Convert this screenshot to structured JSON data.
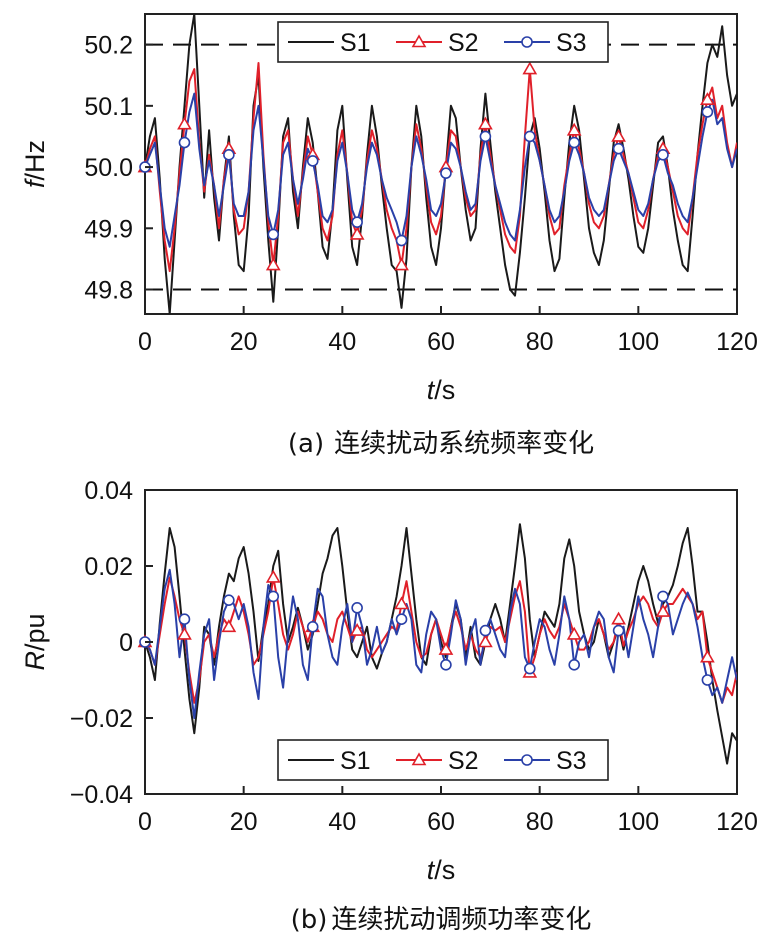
{
  "colors": {
    "S1": "#1a1a1a",
    "S2": "#e0202a",
    "S3": "#2a40a8"
  },
  "chart_data": [
    {
      "id": "a",
      "type": "line",
      "caption_prefix": "(a)",
      "caption_text": "连续扰动系统频率变化",
      "xlabel_italic": "t",
      "xlabel_rest": "/s",
      "ylabel_italic": "f",
      "ylabel_rest": "/Hz",
      "xlim": [
        0,
        120
      ],
      "ylim": [
        49.76,
        50.25
      ],
      "xticks": [
        0,
        20,
        40,
        60,
        80,
        100,
        120
      ],
      "xtick_labels": [
        "0",
        "20",
        "40",
        "60",
        "80",
        "100",
        "120"
      ],
      "yticks": [
        49.8,
        49.9,
        50.0,
        50.1,
        50.2
      ],
      "ytick_labels": [
        "49.8",
        "49.9",
        "50.0",
        "50.1",
        "50.2"
      ],
      "reference_lines": [
        50.2,
        49.8
      ],
      "legend": {
        "position": "top",
        "entries": [
          "S1",
          "S2",
          "S3"
        ]
      },
      "x": [
        0,
        1,
        2,
        3,
        4,
        5,
        6,
        7,
        8,
        9,
        10,
        11,
        12,
        13,
        14,
        15,
        16,
        17,
        18,
        19,
        20,
        21,
        22,
        23,
        24,
        25,
        26,
        27,
        28,
        29,
        30,
        31,
        32,
        33,
        34,
        35,
        36,
        37,
        38,
        39,
        40,
        41,
        42,
        43,
        44,
        45,
        46,
        47,
        48,
        49,
        50,
        51,
        52,
        53,
        54,
        55,
        56,
        57,
        58,
        59,
        60,
        61,
        62,
        63,
        64,
        65,
        66,
        67,
        68,
        69,
        70,
        71,
        72,
        73,
        74,
        75,
        76,
        77,
        78,
        79,
        80,
        81,
        82,
        83,
        84,
        85,
        86,
        87,
        88,
        89,
        90,
        91,
        92,
        93,
        94,
        95,
        96,
        97,
        98,
        99,
        100,
        101,
        102,
        103,
        104,
        105,
        106,
        107,
        108,
        109,
        110,
        111,
        112,
        113,
        114,
        115,
        116,
        117,
        118,
        119,
        120
      ],
      "series": [
        {
          "name": "S1",
          "marker": "none",
          "values": [
            50.0,
            50.05,
            50.08,
            49.98,
            49.85,
            49.76,
            49.88,
            50.0,
            50.1,
            50.2,
            50.25,
            50.1,
            49.95,
            50.06,
            49.95,
            49.88,
            49.98,
            50.05,
            49.92,
            49.84,
            49.83,
            49.92,
            50.1,
            50.15,
            50.0,
            49.88,
            49.78,
            49.9,
            50.05,
            50.08,
            49.96,
            49.9,
            50.0,
            50.08,
            50.04,
            49.96,
            49.87,
            49.85,
            49.93,
            50.06,
            50.1,
            49.98,
            49.87,
            49.84,
            49.92,
            50.02,
            50.1,
            50.05,
            49.97,
            49.9,
            49.84,
            49.83,
            49.77,
            49.85,
            50.0,
            50.1,
            50.05,
            49.95,
            49.87,
            49.84,
            49.9,
            50.0,
            50.1,
            50.08,
            50.0,
            49.93,
            49.88,
            49.9,
            50.03,
            50.12,
            50.04,
            49.96,
            49.9,
            49.84,
            49.8,
            49.79,
            49.86,
            49.95,
            50.05,
            50.08,
            50.03,
            49.96,
            49.88,
            49.83,
            49.85,
            49.95,
            50.04,
            50.1,
            50.06,
            49.98,
            49.9,
            49.86,
            49.84,
            49.88,
            49.96,
            50.04,
            50.07,
            50.03,
            49.98,
            49.92,
            49.87,
            49.86,
            49.9,
            49.97,
            50.04,
            50.05,
            50.0,
            49.93,
            49.88,
            49.84,
            49.83,
            49.92,
            50.02,
            50.1,
            50.17,
            50.2,
            50.18,
            50.23,
            50.15,
            50.1,
            50.12
          ]
        },
        {
          "name": "S2",
          "marker": "triangle",
          "values": [
            50.0,
            50.03,
            50.05,
            49.96,
            49.88,
            49.83,
            49.9,
            49.99,
            50.07,
            50.14,
            50.16,
            50.04,
            49.96,
            50.02,
            49.97,
            49.9,
            49.98,
            50.03,
            49.93,
            49.89,
            49.9,
            49.96,
            50.08,
            50.17,
            50.02,
            49.91,
            49.84,
            49.92,
            50.04,
            50.06,
            49.98,
            49.92,
            49.99,
            50.05,
            50.02,
            49.96,
            49.9,
            49.88,
            49.92,
            50.02,
            50.06,
            49.99,
            49.91,
            49.89,
            49.93,
            50.01,
            50.06,
            50.03,
            49.98,
            49.93,
            49.9,
            49.88,
            49.84,
            49.9,
            50.0,
            50.07,
            50.03,
            49.97,
            49.91,
            49.89,
            49.92,
            50.0,
            50.06,
            50.05,
            50.0,
            49.95,
            49.92,
            49.93,
            50.02,
            50.07,
            50.02,
            49.97,
            49.93,
            49.89,
            49.87,
            49.86,
            49.92,
            50.05,
            50.16,
            50.06,
            50.01,
            49.97,
            49.92,
            49.89,
            49.9,
            49.97,
            50.02,
            50.06,
            50.03,
            49.99,
            49.94,
            49.91,
            49.9,
            49.92,
            49.97,
            50.02,
            50.05,
            50.02,
            49.99,
            49.95,
            49.91,
            49.9,
            49.93,
            49.98,
            50.02,
            50.03,
            50.0,
            49.96,
            49.92,
            49.9,
            49.89,
            49.95,
            50.02,
            50.07,
            50.11,
            50.13,
            50.08,
            50.1,
            50.04,
            50.0,
            50.04
          ]
        },
        {
          "name": "S3",
          "marker": "circle",
          "values": [
            50.0,
            50.02,
            50.04,
            49.97,
            49.9,
            49.87,
            49.92,
            49.97,
            50.04,
            50.09,
            50.12,
            50.03,
            49.97,
            50.01,
            49.97,
            49.92,
            49.97,
            50.02,
            49.94,
            49.92,
            49.92,
            49.96,
            50.06,
            50.1,
            50.01,
            49.92,
            49.89,
            49.93,
            50.02,
            50.04,
            49.98,
            49.94,
            49.98,
            50.03,
            50.01,
            49.97,
            49.92,
            49.91,
            49.93,
            50.01,
            50.04,
            49.99,
            49.93,
            49.91,
            49.94,
            50.0,
            50.04,
            50.02,
            49.98,
            49.95,
            49.93,
            49.91,
            49.88,
            49.92,
            50.0,
            50.05,
            50.02,
            49.98,
            49.93,
            49.92,
            49.94,
            49.99,
            50.04,
            50.03,
            50.0,
            49.96,
            49.93,
            49.94,
            50.01,
            50.05,
            50.01,
            49.97,
            49.94,
            49.91,
            49.89,
            49.88,
            49.93,
            50.0,
            50.05,
            50.04,
            50.01,
            49.97,
            49.93,
            49.91,
            49.92,
            49.96,
            50.01,
            50.04,
            50.02,
            49.99,
            49.95,
            49.93,
            49.92,
            49.93,
            49.97,
            50.01,
            50.03,
            50.01,
            49.99,
            49.96,
            49.93,
            49.92,
            49.94,
            49.98,
            50.01,
            50.02,
            49.99,
            49.97,
            49.94,
            49.92,
            49.91,
            49.95,
            50.0,
            50.05,
            50.09,
            50.11,
            50.07,
            50.08,
            50.03,
            50.0,
            50.03
          ]
        }
      ],
      "marker_x": [
        0,
        8,
        17,
        26,
        34,
        43,
        52,
        61,
        69,
        78,
        87,
        96,
        105,
        114
      ]
    },
    {
      "id": "b",
      "type": "line",
      "caption_prefix": "(b)",
      "caption_text": "连续扰动调频功率变化",
      "xlabel_italic": "t",
      "xlabel_rest": "/s",
      "ylabel_italic": "R",
      "ylabel_rest": "/pu",
      "xlim": [
        0,
        120
      ],
      "ylim": [
        -0.04,
        0.04
      ],
      "xticks": [
        0,
        20,
        40,
        60,
        80,
        100,
        120
      ],
      "xtick_labels": [
        "0",
        "20",
        "40",
        "60",
        "80",
        "100",
        "120"
      ],
      "yticks": [
        -0.04,
        -0.02,
        0,
        0.02,
        0.04
      ],
      "ytick_labels": [
        "−0.04",
        "−0.02",
        "0",
        "0.02",
        "0.04"
      ],
      "reference_lines": [],
      "legend": {
        "position": "bottom",
        "entries": [
          "S1",
          "S2",
          "S3"
        ]
      },
      "x": [
        0,
        1,
        2,
        3,
        4,
        5,
        6,
        7,
        8,
        9,
        10,
        11,
        12,
        13,
        14,
        15,
        16,
        17,
        18,
        19,
        20,
        21,
        22,
        23,
        24,
        25,
        26,
        27,
        28,
        29,
        30,
        31,
        32,
        33,
        34,
        35,
        36,
        37,
        38,
        39,
        40,
        41,
        42,
        43,
        44,
        45,
        46,
        47,
        48,
        49,
        50,
        51,
        52,
        53,
        54,
        55,
        56,
        57,
        58,
        59,
        60,
        61,
        62,
        63,
        64,
        65,
        66,
        67,
        68,
        69,
        70,
        71,
        72,
        73,
        74,
        75,
        76,
        77,
        78,
        79,
        80,
        81,
        82,
        83,
        84,
        85,
        86,
        87,
        88,
        89,
        90,
        91,
        92,
        93,
        94,
        95,
        96,
        97,
        98,
        99,
        100,
        101,
        102,
        103,
        104,
        105,
        106,
        107,
        108,
        109,
        110,
        111,
        112,
        113,
        114,
        115,
        116,
        117,
        118,
        119,
        120
      ],
      "series": [
        {
          "name": "S1",
          "marker": "none",
          "values": [
            0.0,
            -0.004,
            -0.01,
            0.005,
            0.018,
            0.03,
            0.025,
            0.012,
            -0.002,
            -0.015,
            -0.024,
            -0.012,
            0.004,
            0.002,
            -0.006,
            0.004,
            0.012,
            0.018,
            0.016,
            0.022,
            0.025,
            0.018,
            0.008,
            -0.005,
            0.004,
            0.01,
            0.02,
            0.024,
            0.01,
            0.0,
            0.004,
            0.009,
            0.004,
            -0.002,
            0.002,
            0.01,
            0.018,
            0.022,
            0.028,
            0.03,
            0.02,
            0.008,
            -0.002,
            -0.004,
            0.0,
            0.004,
            -0.004,
            -0.007,
            -0.003,
            0.0,
            0.006,
            0.012,
            0.02,
            0.03,
            0.018,
            0.006,
            -0.004,
            -0.006,
            0.002,
            0.006,
            0.0,
            -0.004,
            0.004,
            0.01,
            0.006,
            -0.004,
            0.004,
            -0.004,
            -0.006,
            0.0,
            0.006,
            0.01,
            0.006,
            0.0,
            0.01,
            0.02,
            0.031,
            0.022,
            0.006,
            -0.004,
            0.002,
            0.008,
            0.006,
            0.004,
            0.01,
            0.022,
            0.027,
            0.02,
            0.008,
            0.002,
            -0.002,
            0.0,
            0.006,
            0.002,
            -0.004,
            0.0,
            0.004,
            -0.002,
            0.004,
            0.01,
            0.016,
            0.02,
            0.016,
            0.01,
            0.005,
            0.01,
            0.012,
            0.015,
            0.02,
            0.026,
            0.03,
            0.02,
            0.008,
            0.008,
            0.0,
            -0.01,
            -0.018,
            -0.025,
            -0.032,
            -0.024,
            -0.026
          ]
        },
        {
          "name": "S2",
          "marker": "triangle",
          "values": [
            0.0,
            -0.002,
            -0.006,
            0.002,
            0.01,
            0.017,
            0.012,
            0.006,
            0.002,
            -0.008,
            -0.016,
            -0.01,
            0.0,
            0.002,
            -0.004,
            0.002,
            0.006,
            0.004,
            0.008,
            0.012,
            0.008,
            0.002,
            -0.006,
            -0.004,
            0.002,
            0.008,
            0.017,
            0.01,
            0.002,
            -0.002,
            0.002,
            0.008,
            0.004,
            0.0,
            0.004,
            0.008,
            0.006,
            0.002,
            0.0,
            0.006,
            0.008,
            0.004,
            0.0,
            0.003,
            0.004,
            -0.002,
            -0.004,
            -0.002,
            0.0,
            0.002,
            0.004,
            0.003,
            0.01,
            0.016,
            0.008,
            0.0,
            -0.004,
            -0.003,
            0.002,
            0.006,
            0.002,
            -0.002,
            0.004,
            0.008,
            0.004,
            -0.002,
            0.002,
            -0.002,
            -0.004,
            0.0,
            0.004,
            0.003,
            0.004,
            0.0,
            0.006,
            0.012,
            0.016,
            0.008,
            -0.008,
            -0.004,
            0.002,
            0.006,
            0.003,
            0.001,
            0.004,
            0.01,
            0.006,
            0.002,
            -0.002,
            -0.002,
            0.0,
            0.004,
            0.006,
            0.002,
            -0.002,
            0.0,
            0.006,
            -0.001,
            0.003,
            0.006,
            0.01,
            0.012,
            0.01,
            0.006,
            0.004,
            0.008,
            0.01,
            0.01,
            0.012,
            0.014,
            0.012,
            0.01,
            0.006,
            0.008,
            -0.004,
            -0.008,
            -0.012,
            -0.016,
            -0.012,
            -0.014,
            -0.008
          ]
        },
        {
          "name": "S3",
          "marker": "circle",
          "values": [
            0.0,
            -0.002,
            -0.006,
            0.004,
            0.014,
            0.019,
            0.01,
            -0.004,
            0.006,
            -0.01,
            -0.02,
            -0.008,
            0.002,
            0.006,
            -0.01,
            0.0,
            0.008,
            0.011,
            0.01,
            0.006,
            0.01,
            0.004,
            -0.008,
            -0.015,
            0.004,
            0.015,
            0.012,
            -0.004,
            -0.012,
            0.002,
            0.012,
            0.006,
            -0.006,
            -0.01,
            0.004,
            0.014,
            0.012,
            0.002,
            -0.004,
            -0.006,
            0.004,
            0.01,
            0.0,
            0.009,
            0.004,
            -0.006,
            -0.002,
            0.004,
            -0.003,
            0.0,
            0.006,
            0.002,
            0.006,
            0.01,
            0.006,
            -0.006,
            -0.008,
            0.002,
            0.008,
            0.006,
            -0.002,
            -0.006,
            0.002,
            0.011,
            0.006,
            -0.006,
            0.002,
            0.006,
            -0.006,
            0.003,
            0.006,
            0.002,
            -0.002,
            -0.004,
            0.008,
            0.014,
            0.01,
            -0.004,
            -0.007,
            0.0,
            0.006,
            0.004,
            -0.002,
            -0.006,
            0.002,
            0.012,
            0.006,
            -0.006,
            0.0,
            0.002,
            -0.004,
            0.004,
            0.008,
            0.006,
            -0.004,
            -0.008,
            0.003,
            0.004,
            -0.004,
            0.004,
            0.012,
            0.006,
            0.002,
            -0.004,
            0.004,
            0.012,
            0.01,
            0.002,
            0.006,
            0.01,
            0.013,
            0.01,
            0.004,
            -0.004,
            -0.01,
            -0.014,
            -0.012,
            -0.016,
            -0.01,
            -0.004,
            -0.01
          ]
        }
      ],
      "marker_x": [
        0,
        8,
        17,
        26,
        34,
        43,
        52,
        61,
        69,
        78,
        87,
        96,
        105,
        114
      ]
    }
  ]
}
